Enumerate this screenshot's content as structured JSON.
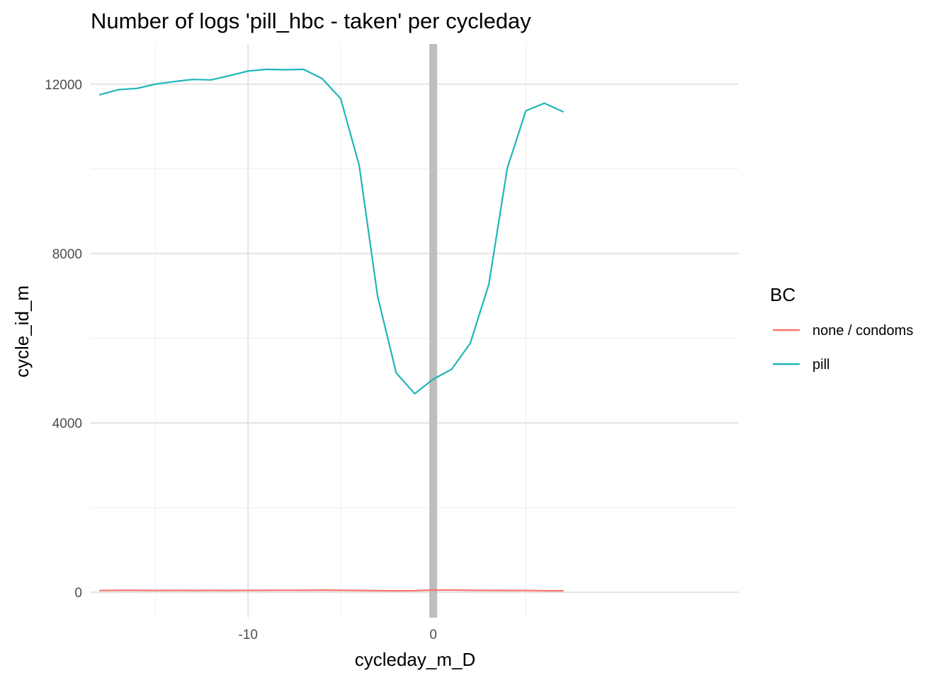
{
  "chart_data": {
    "type": "line",
    "title": "Number of logs 'pill_hbc - taken' per cycleday",
    "xlabel": "cycleday_m_D",
    "ylabel": "cycle_id_m",
    "xlim": [
      -18.5,
      16.5
    ],
    "ylim": [
      -600,
      12950
    ],
    "x_ticks": [
      -10,
      0
    ],
    "x_tick_labels": [
      "-10",
      "0"
    ],
    "x_minor": [
      -15,
      -5,
      5
    ],
    "y_ticks": [
      0,
      4000,
      8000,
      12000
    ],
    "y_tick_labels": [
      "0",
      "4000",
      "8000",
      "12000"
    ],
    "y_minor": [
      2000,
      6000,
      10000
    ],
    "grid": true,
    "reference_line": {
      "x": 0,
      "color": "#bebebe"
    },
    "legend": {
      "title": "BC",
      "position": "right"
    },
    "x": [
      -18,
      -17,
      -16,
      -15,
      -14,
      -13,
      -12,
      -11,
      -10,
      -9,
      -8,
      -7,
      -6,
      -5,
      -4,
      -3,
      -2,
      -1,
      0,
      1,
      2,
      3,
      4,
      5,
      6,
      7
    ],
    "series": [
      {
        "name": "none / condoms",
        "color": "#F8766D",
        "values": [
          40,
          45,
          45,
          42,
          44,
          43,
          44,
          42,
          44,
          46,
          48,
          46,
          50,
          46,
          42,
          38,
          32,
          38,
          52,
          52,
          46,
          44,
          42,
          42,
          35,
          35
        ]
      },
      {
        "name": "pill",
        "color": "#1fb5b9",
        "values": [
          11750,
          11870,
          11900,
          12000,
          12060,
          12110,
          12100,
          12200,
          12310,
          12350,
          12340,
          12350,
          12130,
          11660,
          10080,
          6980,
          5180,
          4690,
          5030,
          5270,
          5880,
          7270,
          10020,
          11370,
          11550,
          11350
        ]
      }
    ]
  }
}
